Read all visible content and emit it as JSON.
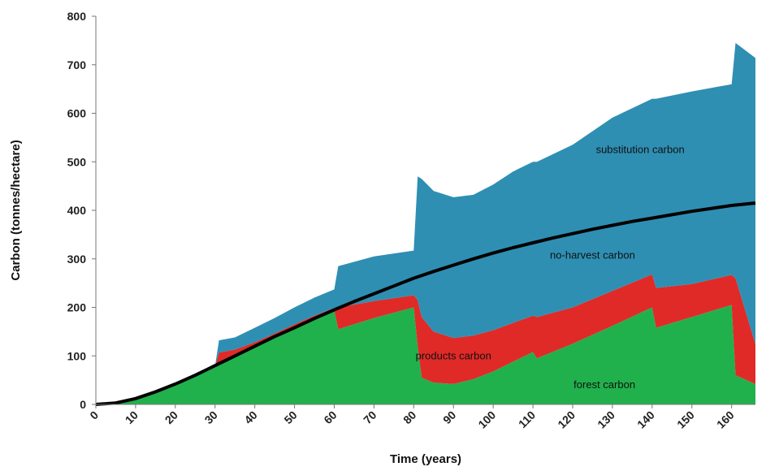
{
  "chart_data": {
    "type": "area",
    "title": "",
    "xlabel": "Time (years)",
    "ylabel": "Carbon (tonnes/hectare)",
    "xlim": [
      0,
      166
    ],
    "ylim": [
      0,
      800
    ],
    "x_ticks": [
      0,
      10,
      20,
      30,
      40,
      50,
      60,
      70,
      80,
      90,
      100,
      110,
      120,
      130,
      140,
      150,
      160
    ],
    "y_ticks": [
      0,
      100,
      200,
      300,
      400,
      500,
      600,
      700,
      800
    ],
    "grid": false,
    "legend": "none",
    "colors": {
      "forest": "#21b14c",
      "products": "#e02a27",
      "substitution": "#2e8fb3",
      "no_harvest": "#000000"
    },
    "series": [
      {
        "name": "forest carbon",
        "x": [
          0,
          5,
          10,
          15,
          20,
          25,
          30,
          35,
          40,
          45,
          50,
          55,
          60,
          61,
          70,
          80,
          81,
          82,
          85,
          90,
          95,
          100,
          105,
          110,
          111,
          120,
          130,
          140,
          141,
          150,
          160,
          161,
          166
        ],
        "values": [
          0,
          3,
          12,
          26,
          42,
          58,
          78,
          98,
          118,
          138,
          158,
          177,
          194,
          155,
          178,
          200,
          120,
          55,
          45,
          42,
          52,
          68,
          88,
          108,
          95,
          125,
          162,
          200,
          158,
          180,
          205,
          60,
          42
        ]
      },
      {
        "name": "products carbon",
        "x": [
          0,
          30,
          31,
          35,
          40,
          45,
          50,
          55,
          60,
          61,
          70,
          80,
          81,
          82,
          85,
          90,
          95,
          100,
          105,
          110,
          111,
          120,
          130,
          140,
          141,
          150,
          160,
          161,
          166
        ],
        "values": [
          0,
          0,
          25,
          15,
          10,
          8,
          7,
          6,
          5,
          45,
          35,
          25,
          95,
          125,
          105,
          95,
          90,
          85,
          80,
          75,
          85,
          75,
          72,
          68,
          82,
          68,
          62,
          200,
          82
        ]
      },
      {
        "name": "substitution carbon",
        "x": [
          0,
          30,
          31,
          35,
          40,
          45,
          50,
          55,
          60,
          61,
          70,
          80,
          81,
          82,
          85,
          90,
          95,
          100,
          105,
          110,
          111,
          120,
          130,
          140,
          141,
          150,
          160,
          161,
          166
        ],
        "values": [
          0,
          0,
          25,
          25,
          30,
          32,
          35,
          37,
          38,
          85,
          92,
          92,
          255,
          285,
          290,
          290,
          290,
          300,
          312,
          317,
          320,
          335,
          357,
          362,
          390,
          397,
          393,
          485,
          590
        ]
      },
      {
        "name": "no-harvest carbon",
        "x": [
          0,
          5,
          10,
          15,
          20,
          25,
          30,
          35,
          40,
          45,
          50,
          55,
          60,
          65,
          70,
          75,
          80,
          85,
          90,
          95,
          100,
          105,
          110,
          115,
          120,
          125,
          130,
          135,
          140,
          145,
          150,
          155,
          160,
          166
        ],
        "values": [
          0,
          3,
          12,
          26,
          42,
          60,
          80,
          100,
          120,
          140,
          158,
          177,
          195,
          212,
          228,
          244,
          260,
          274,
          287,
          300,
          312,
          323,
          333,
          343,
          352,
          361,
          369,
          377,
          384,
          391,
          398,
          404,
          410,
          415
        ]
      }
    ],
    "annotations": [
      {
        "text": "substitution carbon",
        "x": 137,
        "y": 525
      },
      {
        "text": "no-harvest carbon",
        "x": 125,
        "y": 307
      },
      {
        "text": "products carbon",
        "x": 90,
        "y": 100
      },
      {
        "text": "forest carbon",
        "x": 128,
        "y": 40
      }
    ]
  }
}
